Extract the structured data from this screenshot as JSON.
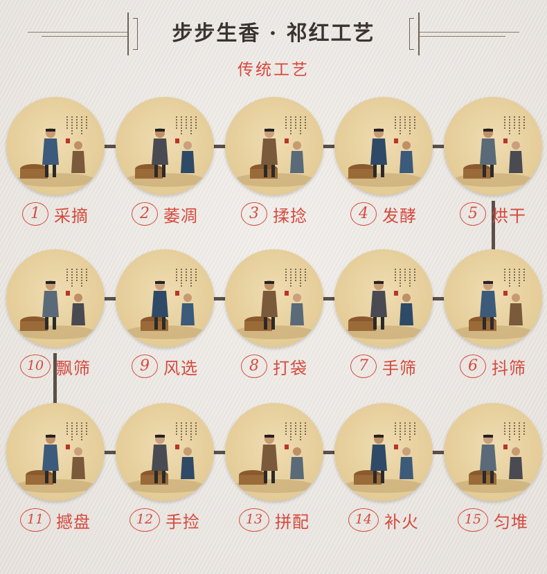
{
  "header": {
    "title": "步步生香 · 祁红工艺",
    "subtitle": "传统工艺"
  },
  "colors": {
    "accent_red": "#d44a3e",
    "title_dark": "#3a3330",
    "connector": "#5a4f49"
  },
  "steps": [
    {
      "num": "1",
      "name": "采摘"
    },
    {
      "num": "2",
      "name": "萎凋"
    },
    {
      "num": "3",
      "name": "揉捻"
    },
    {
      "num": "4",
      "name": "发酵"
    },
    {
      "num": "5",
      "name": "烘干"
    },
    {
      "num": "6",
      "name": "抖筛"
    },
    {
      "num": "7",
      "name": "手筛"
    },
    {
      "num": "8",
      "name": "打袋"
    },
    {
      "num": "9",
      "name": "风选"
    },
    {
      "num": "10",
      "name": "飘筛"
    },
    {
      "num": "11",
      "name": "撼盘"
    },
    {
      "num": "12",
      "name": "手捡"
    },
    {
      "num": "13",
      "name": "拼配"
    },
    {
      "num": "14",
      "name": "补火"
    },
    {
      "num": "15",
      "name": "匀堆"
    }
  ]
}
